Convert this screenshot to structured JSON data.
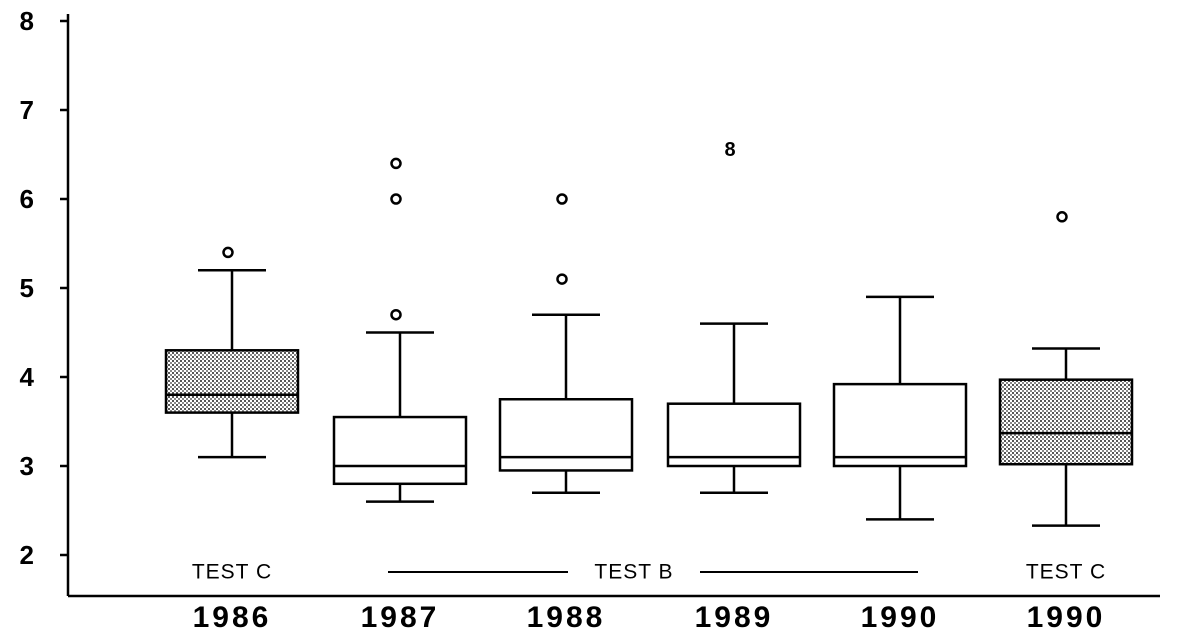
{
  "chart_data": {
    "type": "box",
    "title": "",
    "xlabel": "",
    "ylabel": "",
    "ylim": [
      1.5,
      8.1
    ],
    "yticks": [
      2,
      3,
      4,
      5,
      6,
      7,
      8
    ],
    "categories": [
      "1986",
      "1987",
      "1988",
      "1989",
      "1990",
      "1990"
    ],
    "boxes": [
      {
        "category": "1986",
        "whisker_low": 3.1,
        "q1": 3.6,
        "median": 3.8,
        "q3": 4.3,
        "whisker_high": 5.2,
        "outliers": [
          5.4
        ],
        "shaded": true
      },
      {
        "category": "1987",
        "whisker_low": 2.6,
        "q1": 2.8,
        "median": 3.0,
        "q3": 3.55,
        "whisker_high": 4.5,
        "outliers": [
          4.7,
          6.0,
          6.4
        ],
        "shaded": false
      },
      {
        "category": "1988",
        "whisker_low": 2.7,
        "q1": 2.95,
        "median": 3.1,
        "q3": 3.75,
        "whisker_high": 4.7,
        "outliers": [
          5.1,
          6.0
        ],
        "shaded": false
      },
      {
        "category": "1989",
        "whisker_low": 2.7,
        "q1": 3.0,
        "median": 3.1,
        "q3": 3.7,
        "whisker_high": 4.6,
        "outliers": [
          6.55
        ],
        "outlier_marker": "8",
        "shaded": false
      },
      {
        "category": "1990",
        "whisker_low": 2.4,
        "q1": 3.0,
        "median": 3.1,
        "q3": 3.92,
        "whisker_high": 4.9,
        "outliers": [],
        "shaded": false
      },
      {
        "category": "1990",
        "whisker_low": 2.33,
        "q1": 3.02,
        "median": 3.37,
        "q3": 3.97,
        "whisker_high": 4.32,
        "outliers": [
          5.8
        ],
        "shaded": true
      }
    ],
    "group_labels": [
      {
        "text": "TEST C",
        "categories": [
          0
        ]
      },
      {
        "text": "TEST B",
        "categories": [
          1,
          4
        ]
      },
      {
        "text": "TEST C",
        "categories": [
          5
        ]
      }
    ],
    "grid": false,
    "legend": "none"
  }
}
